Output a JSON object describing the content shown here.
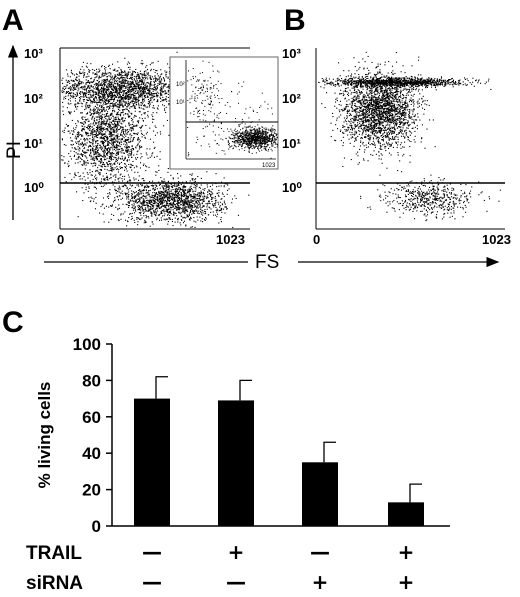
{
  "chart_data": [
    {
      "panel": "A",
      "type": "scatter",
      "xlabel": "FS",
      "ylabel": "PI",
      "x_ticks": [
        "0",
        "1023"
      ],
      "y_ticks": [
        "10⁰",
        "10¹",
        "10²",
        "10³"
      ],
      "y_scale": "log",
      "gate_line_y": 1.0,
      "clusters": [
        {
          "cx": 330,
          "cy_log": 2.1,
          "sx": 180,
          "sy": 0.25,
          "n": 1800
        },
        {
          "cx": 250,
          "cy_log": 0.9,
          "sx": 110,
          "sy": 0.55,
          "n": 1700
        },
        {
          "cx": 600,
          "cy_log": -0.55,
          "sx": 140,
          "sy": 0.25,
          "n": 1500
        }
      ],
      "inset": {
        "x_ticks": [
          "1023"
        ],
        "y_ticks": [
          "10²",
          "10¹"
        ],
        "y_scale": "log",
        "gate_line_y": 1.0
      }
    },
    {
      "panel": "B",
      "type": "scatter",
      "xlabel": "FS",
      "ylabel": "PI",
      "x_ticks": [
        "0",
        "1023"
      ],
      "y_ticks": [
        "10⁰",
        "10¹",
        "10²",
        "10³"
      ],
      "y_scale": "log",
      "gate_line_y": 1.0,
      "clusters": [
        {
          "cx": 430,
          "cy_log": 2.25,
          "sx": 190,
          "sy": 0.05,
          "n": 1100
        },
        {
          "cx": 340,
          "cy_log": 1.6,
          "sx": 100,
          "sy": 0.45,
          "n": 2200
        },
        {
          "cx": 600,
          "cy_log": -0.5,
          "sx": 120,
          "sy": 0.2,
          "n": 500
        }
      ]
    },
    {
      "panel": "C",
      "type": "bar",
      "ylabel": "% living cells",
      "ylim": [
        0,
        100
      ],
      "y_ticks": [
        "0",
        "20",
        "40",
        "60",
        "80",
        "100"
      ],
      "values": [
        70,
        69,
        35,
        13
      ],
      "errors": [
        12,
        11,
        11,
        10
      ],
      "conditions": [
        {
          "name": "TRAIL",
          "signs": [
            "—",
            "+",
            "—",
            "+"
          ]
        },
        {
          "name": "siRNA",
          "signs": [
            "—",
            "—",
            "+",
            "+"
          ]
        }
      ]
    }
  ]
}
